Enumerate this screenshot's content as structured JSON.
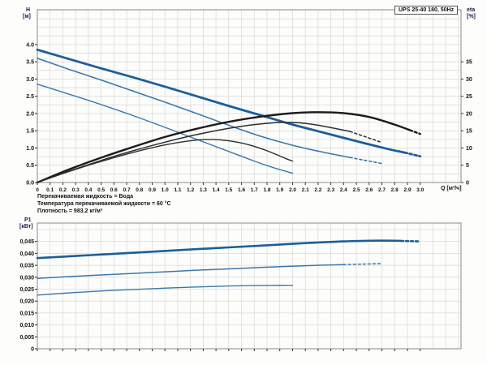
{
  "title_box": "UPS 25-40 180, 50Hz",
  "info_lines": [
    "Перекачиваемая жидкость = Вода",
    "Температура перекачиваемой жидкости = 60 °C",
    "Плотность = 983.2 кг/м³"
  ],
  "colors": {
    "curve_blue_thick": "#1b5e9b",
    "curve_blue_thin": "#3c78ad",
    "curve_black_thick": "#1c1c1c",
    "curve_black_thin": "#2e2e2e",
    "grid": "#d9d9d9",
    "frame": "#8a8a8a",
    "tick_text": "#111111",
    "axis_label_text": "#1b1b4d"
  },
  "chart_data": [
    {
      "type": "line",
      "title": "UPS 25-40 180, 50Hz",
      "xlabel": "Q [м³/ч]",
      "ylabel_left": "H [м]",
      "ylabel_left_lines": [
        "H",
        "[м]"
      ],
      "ylabel_right": "eta [%]",
      "ylabel_right_lines": [
        "eta",
        "[%]"
      ],
      "xlim": [
        0,
        3.32
      ],
      "ylim_left": [
        0,
        5.01
      ],
      "ylim_right": [
        0,
        50.1
      ],
      "grid": {
        "x_step": 0.1,
        "y_step": 0.25,
        "on": true
      },
      "x_tick_step": 0.1,
      "x_tick_labels": [
        "0",
        "0.1",
        "0.2",
        "0.3",
        "0.4",
        "0.5",
        "0.6",
        "0.7",
        "0.8",
        "0.9",
        "1.0",
        "1.1",
        "1.2",
        "1.3",
        "1.4",
        "1.5",
        "1.6",
        "1.7",
        "1.8",
        "1.9",
        "2.0",
        "2.1",
        "2.2",
        "2.3",
        "2.4",
        "2.5",
        "2.6",
        "2.7",
        "2.8",
        "2.9",
        "3.0"
      ],
      "y_left_tick_step": 0.5,
      "y_left_tick_labels": [
        "0.0",
        "0.5",
        "1.0",
        "1.5",
        "2.0",
        "2.5",
        "3.0",
        "3.5",
        "4.0"
      ],
      "y_right_tick_step": 5,
      "y_right_tick_labels": [
        "0",
        "5",
        "10",
        "15",
        "20",
        "25",
        "30",
        "35"
      ],
      "series": [
        {
          "name": "head-speed-3",
          "axis": "left",
          "color": "#1b5e9b",
          "width": 2.8,
          "dash_from": 2.88,
          "points": [
            [
              0,
              3.85
            ],
            [
              0.25,
              3.58
            ],
            [
              0.5,
              3.31
            ],
            [
              0.75,
              3.05
            ],
            [
              1.0,
              2.78
            ],
            [
              1.25,
              2.5
            ],
            [
              1.5,
              2.22
            ],
            [
              1.75,
              1.95
            ],
            [
              2.0,
              1.68
            ],
            [
              2.25,
              1.44
            ],
            [
              2.5,
              1.2
            ],
            [
              2.75,
              0.97
            ],
            [
              2.9,
              0.85
            ],
            [
              3.0,
              0.76
            ]
          ]
        },
        {
          "name": "head-speed-2",
          "axis": "left",
          "color": "#3c78ad",
          "width": 1.6,
          "dash_from": 2.45,
          "points": [
            [
              0,
              3.6
            ],
            [
              0.25,
              3.28
            ],
            [
              0.5,
              2.97
            ],
            [
              0.75,
              2.65
            ],
            [
              1.0,
              2.33
            ],
            [
              1.25,
              2.0
            ],
            [
              1.5,
              1.66
            ],
            [
              1.75,
              1.34
            ],
            [
              2.0,
              1.08
            ],
            [
              2.25,
              0.87
            ],
            [
              2.5,
              0.69
            ],
            [
              2.7,
              0.55
            ]
          ]
        },
        {
          "name": "head-speed-1",
          "axis": "left",
          "color": "#3c78ad",
          "width": 1.4,
          "dash_from": null,
          "points": [
            [
              0,
              2.85
            ],
            [
              0.25,
              2.56
            ],
            [
              0.5,
              2.26
            ],
            [
              0.75,
              1.94
            ],
            [
              1.0,
              1.6
            ],
            [
              1.25,
              1.25
            ],
            [
              1.5,
              0.9
            ],
            [
              1.7,
              0.62
            ],
            [
              1.85,
              0.43
            ],
            [
              2.0,
              0.27
            ]
          ]
        },
        {
          "name": "eff-speed-3",
          "axis": "right",
          "color": "#1c1c1c",
          "width": 2.4,
          "dash_from": 2.92,
          "points": [
            [
              0,
              0
            ],
            [
              0.25,
              3.8
            ],
            [
              0.5,
              7.2
            ],
            [
              0.75,
              10.3
            ],
            [
              1.0,
              13.2
            ],
            [
              1.25,
              15.6
            ],
            [
              1.5,
              17.6
            ],
            [
              1.75,
              19.1
            ],
            [
              2.0,
              20.1
            ],
            [
              2.2,
              20.4
            ],
            [
              2.4,
              20.1
            ],
            [
              2.6,
              19.0
            ],
            [
              2.8,
              16.8
            ],
            [
              3.0,
              14.1
            ]
          ]
        },
        {
          "name": "eff-speed-2",
          "axis": "right",
          "color": "#2e2e2e",
          "width": 1.5,
          "dash_from": 2.45,
          "points": [
            [
              0,
              0
            ],
            [
              0.25,
              3.3
            ],
            [
              0.5,
              6.4
            ],
            [
              0.75,
              9.2
            ],
            [
              1.0,
              11.7
            ],
            [
              1.25,
              13.9
            ],
            [
              1.5,
              15.7
            ],
            [
              1.7,
              16.8
            ],
            [
              1.9,
              17.4
            ],
            [
              2.05,
              17.3
            ],
            [
              2.2,
              16.6
            ],
            [
              2.45,
              14.8
            ],
            [
              2.7,
              11.6
            ]
          ]
        },
        {
          "name": "eff-speed-1",
          "axis": "right",
          "color": "#2e2e2e",
          "width": 1.4,
          "dash_from": null,
          "points": [
            [
              0,
              0
            ],
            [
              0.2,
              2.6
            ],
            [
              0.4,
              5.0
            ],
            [
              0.6,
              7.2
            ],
            [
              0.8,
              9.2
            ],
            [
              1.0,
              10.9
            ],
            [
              1.2,
              12.1
            ],
            [
              1.35,
              12.5
            ],
            [
              1.5,
              12.1
            ],
            [
              1.65,
              11.0
            ],
            [
              1.8,
              9.2
            ],
            [
              1.95,
              6.9
            ],
            [
              2.0,
              6.2
            ]
          ]
        }
      ]
    },
    {
      "type": "line",
      "title": "",
      "xlabel": "",
      "ylabel_left": "P1 [кВт]",
      "ylabel_left_lines": [
        "P1",
        "[кВт]"
      ],
      "xlim": [
        0,
        3.32
      ],
      "ylim_left": [
        0,
        0.0527
      ],
      "grid": {
        "x_step": 0.1,
        "y_step": 0.005,
        "on": true
      },
      "x_tick_step": 0.1,
      "x_tick_labels": [],
      "y_left_tick_step": 0.005,
      "y_left_tick_labels": [
        "0",
        "0,005",
        "0,010",
        "0,015",
        "0,020",
        "0,025",
        "0,030",
        "0,035",
        "0,040",
        "0,045"
      ],
      "series": [
        {
          "name": "power-speed-3",
          "axis": "left",
          "color": "#1b5e9b",
          "width": 2.6,
          "dash_from": 2.85,
          "points": [
            [
              0,
              0.038
            ],
            [
              0.3,
              0.0389
            ],
            [
              0.6,
              0.0398
            ],
            [
              0.9,
              0.0407
            ],
            [
              1.2,
              0.0416
            ],
            [
              1.5,
              0.0425
            ],
            [
              1.8,
              0.0434
            ],
            [
              2.1,
              0.0443
            ],
            [
              2.4,
              0.045
            ],
            [
              2.6,
              0.0453
            ],
            [
              2.8,
              0.0453
            ],
            [
              3.0,
              0.045
            ]
          ]
        },
        {
          "name": "power-speed-2",
          "axis": "left",
          "color": "#3c78ad",
          "width": 1.5,
          "dash_from": 2.4,
          "points": [
            [
              0,
              0.0295
            ],
            [
              0.3,
              0.0304
            ],
            [
              0.6,
              0.0312
            ],
            [
              0.9,
              0.032
            ],
            [
              1.2,
              0.0328
            ],
            [
              1.5,
              0.0335
            ],
            [
              1.8,
              0.0342
            ],
            [
              2.1,
              0.0348
            ],
            [
              2.4,
              0.0353
            ],
            [
              2.55,
              0.0355
            ],
            [
              2.7,
              0.0357
            ]
          ]
        },
        {
          "name": "power-speed-1",
          "axis": "left",
          "color": "#3c78ad",
          "width": 1.4,
          "dash_from": null,
          "points": [
            [
              0,
              0.0225
            ],
            [
              0.3,
              0.0236
            ],
            [
              0.6,
              0.0245
            ],
            [
              0.9,
              0.0252
            ],
            [
              1.2,
              0.0258
            ],
            [
              1.5,
              0.0263
            ],
            [
              1.7,
              0.0265
            ],
            [
              1.85,
              0.0266
            ],
            [
              2.0,
              0.0266
            ]
          ]
        }
      ]
    }
  ]
}
